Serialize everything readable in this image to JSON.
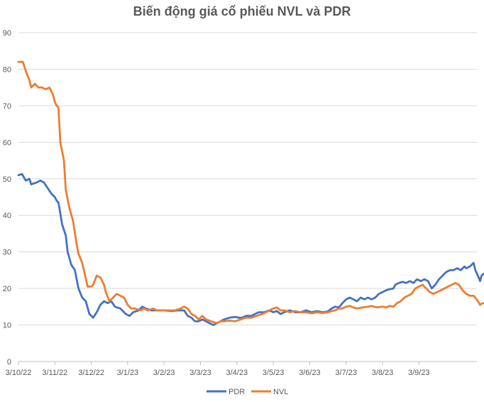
{
  "chart_data": {
    "type": "line",
    "title": "Biến động giá cổ phiếu NVL và PDR",
    "ylim": [
      0,
      90
    ],
    "y_ticks": [
      "0",
      "10",
      "20",
      "30",
      "40",
      "50",
      "60",
      "70",
      "80",
      "90"
    ],
    "x_ticks": [
      "3/10/22",
      "3/11/22",
      "3/12/22",
      "3/1/23",
      "3/2/23",
      "3/3/23",
      "3/4/23",
      "3/5/23",
      "3/6/23",
      "3/7/23",
      "3/8/23",
      "3/9/23"
    ],
    "x_range": [
      0,
      12.7
    ],
    "grid": true,
    "legend_placement": "bottom",
    "series": [
      {
        "name": "PDR",
        "color": "#4472C4",
        "points": [
          [
            0,
            51
          ],
          [
            0.1,
            51.3
          ],
          [
            0.2,
            49.5
          ],
          [
            0.3,
            50
          ],
          [
            0.35,
            48.5
          ],
          [
            0.5,
            49
          ],
          [
            0.6,
            49.5
          ],
          [
            0.7,
            49
          ],
          [
            0.8,
            47.5
          ],
          [
            0.9,
            46
          ],
          [
            1.0,
            45
          ],
          [
            1.05,
            44
          ],
          [
            1.1,
            43.5
          ],
          [
            1.2,
            37.5
          ],
          [
            1.3,
            34.5
          ],
          [
            1.35,
            30
          ],
          [
            1.45,
            26.5
          ],
          [
            1.55,
            25
          ],
          [
            1.65,
            20
          ],
          [
            1.75,
            17.5
          ],
          [
            1.85,
            16.5
          ],
          [
            1.95,
            13
          ],
          [
            2.05,
            12
          ],
          [
            2.15,
            13.5
          ],
          [
            2.25,
            15.5
          ],
          [
            2.35,
            16.5
          ],
          [
            2.45,
            16
          ],
          [
            2.55,
            16.5
          ],
          [
            2.65,
            15
          ],
          [
            2.8,
            14.5
          ],
          [
            2.95,
            13
          ],
          [
            3.05,
            12.5
          ],
          [
            3.15,
            13.5
          ],
          [
            3.3,
            14
          ],
          [
            3.4,
            15
          ],
          [
            3.5,
            14.5
          ],
          [
            3.65,
            14
          ],
          [
            3.8,
            14
          ],
          [
            4.0,
            14
          ],
          [
            4.2,
            13.8
          ],
          [
            4.4,
            14
          ],
          [
            4.55,
            14
          ],
          [
            4.65,
            12.5
          ],
          [
            4.75,
            12
          ],
          [
            4.85,
            11
          ],
          [
            4.95,
            11
          ],
          [
            5.05,
            11.5
          ],
          [
            5.15,
            11
          ],
          [
            5.25,
            10.5
          ],
          [
            5.35,
            10
          ],
          [
            5.45,
            10.5
          ],
          [
            5.55,
            11
          ],
          [
            5.65,
            11.5
          ],
          [
            5.8,
            12
          ],
          [
            5.95,
            12.2
          ],
          [
            6.05,
            12
          ],
          [
            6.15,
            12
          ],
          [
            6.25,
            12.5
          ],
          [
            6.4,
            12.5
          ],
          [
            6.5,
            13
          ],
          [
            6.6,
            13.5
          ],
          [
            6.75,
            13.5
          ],
          [
            6.9,
            14
          ],
          [
            7.0,
            13.5
          ],
          [
            7.1,
            13.8
          ],
          [
            7.2,
            13
          ],
          [
            7.3,
            13.5
          ],
          [
            7.45,
            14
          ],
          [
            7.6,
            13.5
          ],
          [
            7.75,
            13.5
          ],
          [
            7.9,
            14
          ],
          [
            8.05,
            13.5
          ],
          [
            8.2,
            13.8
          ],
          [
            8.35,
            13.5
          ],
          [
            8.5,
            13.7
          ],
          [
            8.6,
            14.5
          ],
          [
            8.7,
            15
          ],
          [
            8.8,
            14.8
          ],
          [
            8.9,
            16
          ],
          [
            9.0,
            17
          ],
          [
            9.1,
            17.5
          ],
          [
            9.2,
            17
          ],
          [
            9.3,
            16.5
          ],
          [
            9.4,
            17.5
          ],
          [
            9.5,
            17
          ],
          [
            9.6,
            17.5
          ],
          [
            9.7,
            17
          ],
          [
            9.8,
            17.5
          ],
          [
            9.9,
            18.5
          ],
          [
            10.0,
            19
          ],
          [
            10.1,
            19.5
          ],
          [
            10.2,
            19.8
          ],
          [
            10.3,
            20
          ],
          [
            10.35,
            21
          ],
          [
            10.45,
            21.5
          ],
          [
            10.55,
            21.8
          ],
          [
            10.65,
            21.5
          ],
          [
            10.75,
            22
          ],
          [
            10.85,
            21.5
          ],
          [
            10.95,
            22.5
          ],
          [
            11.05,
            22
          ],
          [
            11.15,
            22.5
          ],
          [
            11.25,
            22
          ],
          [
            11.35,
            20
          ],
          [
            11.45,
            21
          ],
          [
            11.55,
            22.5
          ],
          [
            11.65,
            23.5
          ],
          [
            11.75,
            24.5
          ],
          [
            11.85,
            25
          ],
          [
            11.95,
            25
          ],
          [
            12.05,
            25.5
          ],
          [
            12.15,
            25
          ],
          [
            12.25,
            26
          ],
          [
            12.3,
            25.5
          ],
          [
            12.4,
            26
          ],
          [
            12.5,
            27
          ],
          [
            12.55,
            25
          ],
          [
            12.62,
            23.5
          ],
          [
            12.68,
            22
          ],
          [
            12.72,
            23.5
          ],
          [
            12.78,
            24
          ]
        ]
      },
      {
        "name": "NVL",
        "color": "#ED7D31",
        "points": [
          [
            0,
            82
          ],
          [
            0.12,
            82
          ],
          [
            0.2,
            79.5
          ],
          [
            0.3,
            77
          ],
          [
            0.35,
            75
          ],
          [
            0.45,
            76
          ],
          [
            0.55,
            75
          ],
          [
            0.65,
            75
          ],
          [
            0.75,
            74.5
          ],
          [
            0.85,
            75
          ],
          [
            0.9,
            74
          ],
          [
            0.95,
            73
          ],
          [
            1.0,
            71
          ],
          [
            1.05,
            70
          ],
          [
            1.1,
            69.5
          ],
          [
            1.15,
            60
          ],
          [
            1.25,
            55
          ],
          [
            1.3,
            47
          ],
          [
            1.4,
            42
          ],
          [
            1.5,
            38.5
          ],
          [
            1.6,
            32
          ],
          [
            1.65,
            29.5
          ],
          [
            1.75,
            27
          ],
          [
            1.82,
            24
          ],
          [
            1.9,
            20.5
          ],
          [
            2.0,
            20.5
          ],
          [
            2.05,
            21
          ],
          [
            2.15,
            23.5
          ],
          [
            2.25,
            23
          ],
          [
            2.35,
            21
          ],
          [
            2.4,
            19
          ],
          [
            2.5,
            16.5
          ],
          [
            2.6,
            17.5
          ],
          [
            2.7,
            18.5
          ],
          [
            2.8,
            18
          ],
          [
            2.9,
            17.5
          ],
          [
            3.0,
            15.5
          ],
          [
            3.1,
            14.5
          ],
          [
            3.2,
            14.5
          ],
          [
            3.35,
            14
          ],
          [
            3.45,
            14.5
          ],
          [
            3.55,
            14
          ],
          [
            3.7,
            14.5
          ],
          [
            3.8,
            14
          ],
          [
            3.95,
            14
          ],
          [
            4.1,
            14
          ],
          [
            4.3,
            14
          ],
          [
            4.45,
            14.5
          ],
          [
            4.55,
            15
          ],
          [
            4.65,
            14.5
          ],
          [
            4.75,
            13
          ],
          [
            4.85,
            12.5
          ],
          [
            4.95,
            11.5
          ],
          [
            5.05,
            12.5
          ],
          [
            5.15,
            11.5
          ],
          [
            5.3,
            11
          ],
          [
            5.45,
            10.5
          ],
          [
            5.55,
            11
          ],
          [
            5.65,
            11
          ],
          [
            5.8,
            11.2
          ],
          [
            5.95,
            11
          ],
          [
            6.1,
            11.5
          ],
          [
            6.25,
            12
          ],
          [
            6.4,
            12
          ],
          [
            6.55,
            12.5
          ],
          [
            6.7,
            13
          ],
          [
            6.8,
            13.5
          ],
          [
            6.9,
            14
          ],
          [
            7.0,
            14.5
          ],
          [
            7.1,
            14.8
          ],
          [
            7.2,
            14
          ],
          [
            7.3,
            14
          ],
          [
            7.45,
            13.5
          ],
          [
            7.6,
            13.8
          ],
          [
            7.75,
            13.5
          ],
          [
            7.9,
            13.5
          ],
          [
            8.05,
            13.2
          ],
          [
            8.2,
            13.5
          ],
          [
            8.35,
            13.3
          ],
          [
            8.5,
            13.5
          ],
          [
            8.6,
            13.8
          ],
          [
            8.7,
            14
          ],
          [
            8.8,
            14.5
          ],
          [
            8.9,
            14.5
          ],
          [
            9.0,
            15
          ],
          [
            9.1,
            15.2
          ],
          [
            9.2,
            14.8
          ],
          [
            9.3,
            14.5
          ],
          [
            9.45,
            14.8
          ],
          [
            9.6,
            15
          ],
          [
            9.7,
            15.2
          ],
          [
            9.85,
            14.8
          ],
          [
            10.0,
            15
          ],
          [
            10.1,
            14.8
          ],
          [
            10.2,
            15.2
          ],
          [
            10.3,
            15
          ],
          [
            10.4,
            16
          ],
          [
            10.5,
            16.5
          ],
          [
            10.6,
            17.5
          ],
          [
            10.7,
            18
          ],
          [
            10.8,
            18.5
          ],
          [
            10.9,
            20
          ],
          [
            11.0,
            20.5
          ],
          [
            11.1,
            21
          ],
          [
            11.2,
            20
          ],
          [
            11.3,
            19
          ],
          [
            11.4,
            18.5
          ],
          [
            11.5,
            19
          ],
          [
            11.6,
            19.5
          ],
          [
            11.7,
            20
          ],
          [
            11.8,
            20.5
          ],
          [
            11.9,
            21
          ],
          [
            12.0,
            21.5
          ],
          [
            12.1,
            21
          ],
          [
            12.2,
            19.5
          ],
          [
            12.3,
            18.5
          ],
          [
            12.4,
            18
          ],
          [
            12.5,
            18
          ],
          [
            12.55,
            17.5
          ],
          [
            12.62,
            16.5
          ],
          [
            12.68,
            15.5
          ],
          [
            12.72,
            15.8
          ],
          [
            12.78,
            16
          ]
        ]
      }
    ]
  }
}
